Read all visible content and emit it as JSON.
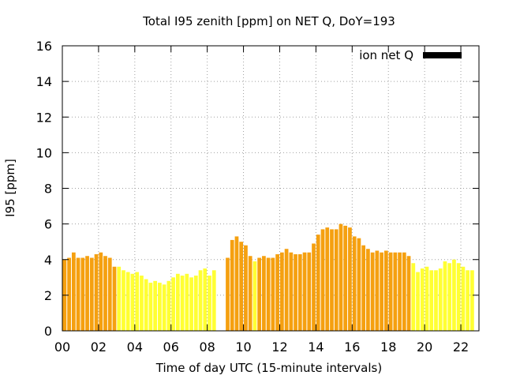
{
  "chart_data": {
    "type": "bar",
    "title": "Total I95 zenith [ppm] on NET Q, DoY=193",
    "xlabel": "Time of day UTC (15-minute intervals)",
    "ylabel": "I95 [ppm]",
    "ylim": [
      0,
      16
    ],
    "xlim": [
      0,
      23.0
    ],
    "y_ticks": [
      "0",
      "2",
      "4",
      "6",
      "8",
      "10",
      "12",
      "14",
      "16"
    ],
    "x_ticks": [
      "00",
      "02",
      "04",
      "06",
      "08",
      "10",
      "12",
      "14",
      "16",
      "18",
      "20",
      "22"
    ],
    "grid": true,
    "legend": {
      "label": "ion net Q",
      "color": "#000000",
      "placement": "top-right"
    },
    "bin_width_hours": 0.25,
    "colors": {
      "orange": "#f5a010",
      "yellow": "#ffff33"
    },
    "series": [
      {
        "x_start": 0.0,
        "values": [
          4.0,
          4.1,
          4.4,
          4.1,
          4.1,
          4.2,
          4.1,
          4.3,
          4.4,
          4.2,
          4.1,
          3.6
        ],
        "color": "orange"
      },
      {
        "x_start": 3.0,
        "values": [
          3.6,
          3.4,
          3.3,
          3.2,
          3.3,
          3.1,
          2.9,
          2.7,
          2.8,
          2.7,
          2.6,
          2.8,
          3.0,
          3.2,
          3.1,
          3.2,
          3.0,
          3.1,
          3.4,
          3.5,
          3.1,
          3.4
        ],
        "color": "yellow"
      },
      {
        "x_start": 9.0,
        "values": [
          4.1,
          5.1,
          5.3,
          5.0,
          4.8,
          4.2
        ],
        "color": "orange"
      },
      {
        "x_start": 10.5,
        "values": [
          3.9
        ],
        "color": "yellow"
      },
      {
        "x_start": 10.75,
        "values": [
          4.1,
          4.2,
          4.1,
          4.1,
          4.3,
          4.4,
          4.6,
          4.4,
          4.3,
          4.3,
          4.4,
          4.4,
          4.9,
          5.4,
          5.7,
          5.8,
          5.7,
          5.7,
          6.0,
          5.9,
          5.8,
          5.3,
          5.2,
          4.8,
          4.6,
          4.4,
          4.5,
          4.4,
          4.5,
          4.4,
          4.4,
          4.4,
          4.4,
          4.2
        ],
        "color": "orange"
      },
      {
        "x_start": 19.25,
        "values": [
          3.8,
          3.3,
          3.5,
          3.6,
          3.4,
          3.4,
          3.5,
          3.9,
          3.8,
          4.0,
          3.8,
          3.6,
          3.4,
          3.4
        ],
        "color": "yellow"
      }
    ]
  }
}
